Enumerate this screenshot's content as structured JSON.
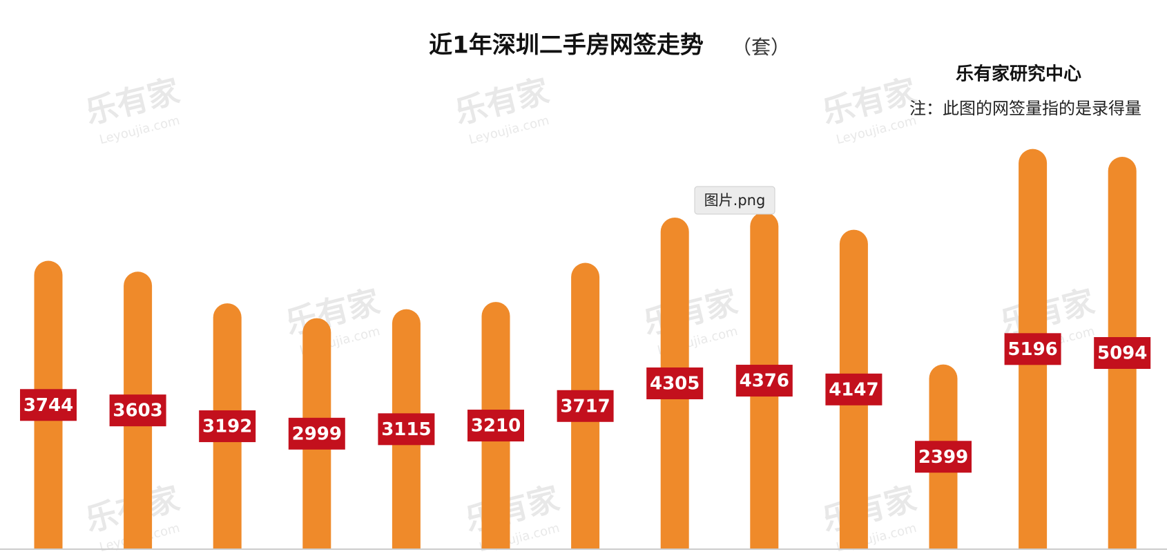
{
  "chart_data": {
    "type": "bar",
    "title": "近1年深圳二手房网签走势",
    "unit": "（套）",
    "subtitle": "乐有家研究中心",
    "note": "注：此图的网签量指的是录得量",
    "watermark": "乐有家",
    "watermark_url": "Leyoujia.com",
    "tooltip": "图片.png",
    "categories": [
      null,
      null,
      null,
      null,
      null,
      null,
      null,
      null,
      null,
      null,
      null,
      null,
      null
    ],
    "values": [
      3744,
      3603,
      3192,
      2999,
      3115,
      3210,
      3717,
      4305,
      4376,
      4147,
      2399,
      5196,
      5094
    ],
    "color": "#ef8a2a",
    "label_color": "#c3101d",
    "ylim": [
      0,
      6000
    ]
  }
}
